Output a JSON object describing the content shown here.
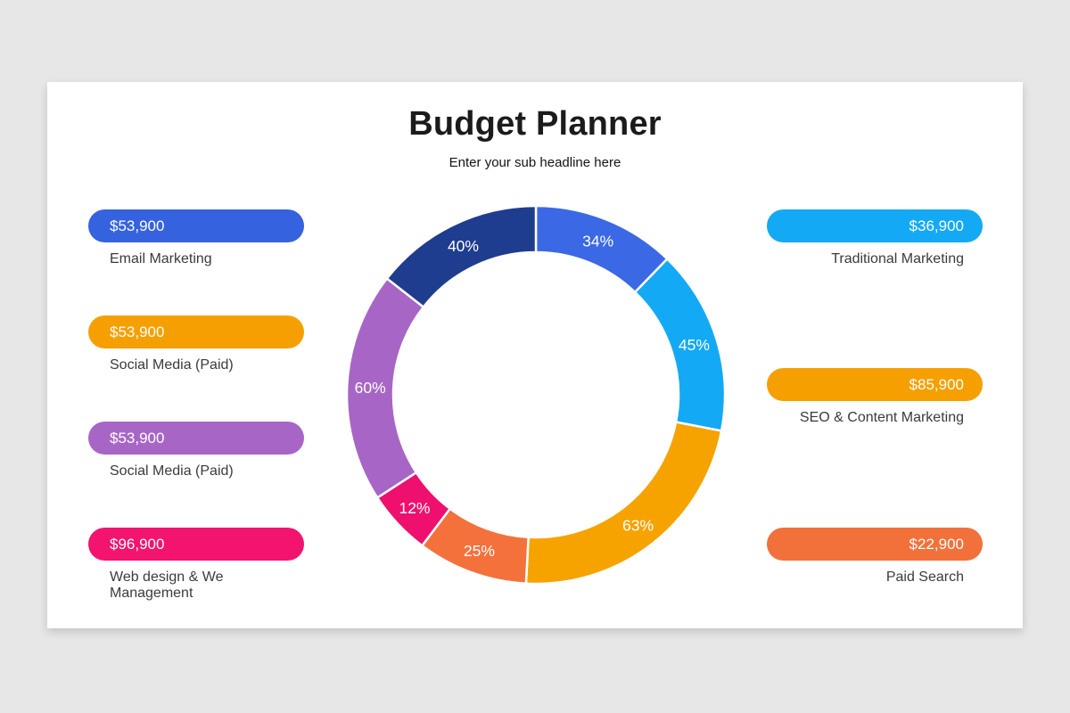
{
  "page": {
    "background_color": "#e8e7e7",
    "card_color": "#ffffff"
  },
  "header": {
    "title": "Budget Planner",
    "subtitle": "Enter your sub headline here"
  },
  "legend_left": {
    "items": [
      {
        "value": "$53,900",
        "label": "Email Marketing",
        "color": "#3562df"
      },
      {
        "value": "$53,900",
        "label": "Social Media (Paid)",
        "color": "#f5a000"
      },
      {
        "value": "$53,900",
        "label": "Social Media (Paid)",
        "color": "#a766c6"
      },
      {
        "value": "$96,900",
        "label": "Web design & We Management",
        "color": "#f2146e"
      }
    ]
  },
  "legend_right": {
    "items": [
      {
        "value": "$36,900",
        "label": "Traditional Marketing",
        "color": "#14a9f4"
      },
      {
        "value": "$85,900",
        "label": "SEO & Content Marketing",
        "color": "#f5a000"
      },
      {
        "value": "$22,900",
        "label": "Paid Search",
        "color": "#f2703a"
      }
    ]
  },
  "chart_data": {
    "type": "pie",
    "variant": "donut",
    "title": "Budget Planner",
    "subtitle": "Enter your sub headline here",
    "legend_position": "left-and-right-pills",
    "labels": [
      "34%",
      "45%",
      "63%",
      "25%",
      "12%",
      "60%",
      "40%"
    ],
    "values": [
      34,
      45,
      63,
      25,
      12,
      60,
      40
    ],
    "segments": [
      {
        "percent_label": "34%",
        "value": 34,
        "color": "#3b68e4",
        "start_angle": 0,
        "end_angle": 44
      },
      {
        "percent_label": "45%",
        "value": 45,
        "color": "#14a9f4",
        "start_angle": 44,
        "end_angle": 101
      },
      {
        "percent_label": "63%",
        "value": 63,
        "color": "#f6a300",
        "start_angle": 101,
        "end_angle": 183
      },
      {
        "percent_label": "25%",
        "value": 25,
        "color": "#f4713c",
        "start_angle": 183,
        "end_angle": 217
      },
      {
        "percent_label": "12%",
        "value": 12,
        "color": "#ee0f6e",
        "start_angle": 217,
        "end_angle": 237
      },
      {
        "percent_label": "60%",
        "value": 60,
        "color": "#a766c6",
        "start_angle": 237,
        "end_angle": 308
      },
      {
        "percent_label": "40%",
        "value": 40,
        "color": "#1e3d8e",
        "start_angle": 308,
        "end_angle": 360
      }
    ],
    "geometry": {
      "outer_radius": 212,
      "inner_radius": 160,
      "label_radius": 186,
      "separator_color": "#ffffff",
      "separator_width": 2.5
    }
  }
}
